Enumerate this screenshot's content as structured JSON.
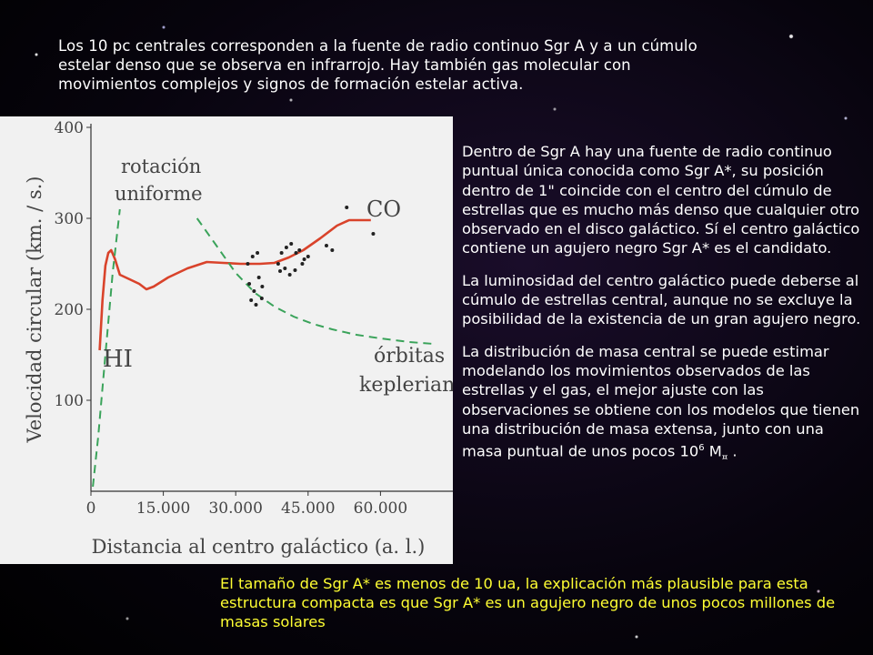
{
  "slide": {
    "intro_text": "Los 10 pc centrales corresponden a la fuente de radio continuo Sgr A y a un cúmulo estelar denso que se observa en infrarrojo. Hay también gas molecular con movimientos complejos y signos de formación estelar activa.",
    "side_paragraphs": [
      "Dentro de Sgr A hay una fuente de radio continuo puntual única conocida como Sgr A*, su posición dentro de 1\" coincide con el centro del cúmulo de estrellas que es mucho más denso que cualquier otro observado en el disco galáctico. Sí el centro galáctico contiene un agujero negro Sgr A* es el candidato.",
      "La luminosidad del centro galáctico puede deberse al cúmulo de estrellas central, aunque no se excluye la posibilidad de la existencia de un gran agujero negro."
    ],
    "mass_paragraph_prefix": "La distribución de masa central se puede estimar modelando los movimientos observados de las estrellas y el gas, el mejor ajuste con las observaciones se obtiene con los modelos que tienen una distribución de masa extensa, junto con una masa puntual de unos pocos 10",
    "mass_exponent": "6",
    "mass_unit": " M",
    "mass_symbol": "¤",
    "mass_end": " .",
    "conclusion_text": "El tamaño de Sgr A* es menos de 10 ua, la explicación más plausible para esta estructura compacta es que Sgr A* es un agujero negro de unos pocos millones de masas solares",
    "colors": {
      "conclusion": "#ffff33",
      "rotation_curve": "#d9432b",
      "model_curves": "#3aa35a"
    }
  },
  "chart_data": {
    "type": "line",
    "xlabel": "Distancia al centro galáctico (a. l.)",
    "ylabel": "Velocidad circular (km. / s.)",
    "xlim": [
      0,
      75000
    ],
    "ylim": [
      0,
      400
    ],
    "x_tick_labels": [
      "0",
      "15.000",
      "30.000",
      "45.000",
      "60.000"
    ],
    "x_tick_values": [
      0,
      15000,
      30000,
      45000,
      60000
    ],
    "y_tick_labels": [
      "100",
      "200",
      "300",
      "400"
    ],
    "y_tick_values": [
      100,
      200,
      300,
      400
    ],
    "grid": false,
    "series": [
      {
        "name": "HI",
        "style": "solid",
        "points": [
          [
            1800,
            155
          ],
          [
            2400,
            210
          ],
          [
            3000,
            248
          ],
          [
            3600,
            262
          ],
          [
            4200,
            265
          ],
          [
            5000,
            255
          ],
          [
            6000,
            238
          ],
          [
            8000,
            233
          ],
          [
            10000,
            228
          ],
          [
            11500,
            222
          ],
          [
            13000,
            225
          ],
          [
            16000,
            235
          ],
          [
            20000,
            245
          ],
          [
            24000,
            252
          ],
          [
            27500,
            251
          ],
          [
            31000,
            250
          ],
          [
            35000,
            250
          ],
          [
            38000,
            251
          ],
          [
            41000,
            257
          ],
          [
            44000,
            265
          ],
          [
            47500,
            278
          ],
          [
            51000,
            292
          ],
          [
            53500,
            298
          ],
          [
            56000,
            298
          ],
          [
            58000,
            298
          ]
        ]
      },
      {
        "name": "rotación uniforme",
        "style": "dashed",
        "points": [
          [
            400,
            5
          ],
          [
            1500,
            60
          ],
          [
            3000,
            150
          ],
          [
            4500,
            240
          ],
          [
            6000,
            310
          ]
        ]
      },
      {
        "name": "órbitas keplerianas",
        "style": "dashed",
        "points": [
          [
            22000,
            300
          ],
          [
            26000,
            270
          ],
          [
            30000,
            240
          ],
          [
            34000,
            218
          ],
          [
            38000,
            203
          ],
          [
            42000,
            192
          ],
          [
            46000,
            184
          ],
          [
            50000,
            178
          ],
          [
            55000,
            172
          ],
          [
            60000,
            168
          ],
          [
            66000,
            164
          ],
          [
            71000,
            162
          ]
        ]
      },
      {
        "name": "CO",
        "style": "points",
        "points": [
          [
            32500,
            250
          ],
          [
            33500,
            258
          ],
          [
            34500,
            262
          ],
          [
            32800,
            228
          ],
          [
            33800,
            220
          ],
          [
            34800,
            235
          ],
          [
            35500,
            225
          ],
          [
            33200,
            210
          ],
          [
            34200,
            205
          ],
          [
            35400,
            212
          ],
          [
            38800,
            250
          ],
          [
            39500,
            262
          ],
          [
            40500,
            268
          ],
          [
            41500,
            272
          ],
          [
            42500,
            262
          ],
          [
            43200,
            265
          ],
          [
            44200,
            255
          ],
          [
            45000,
            258
          ],
          [
            39200,
            242
          ],
          [
            40200,
            245
          ],
          [
            41200,
            238
          ],
          [
            42300,
            243
          ],
          [
            43800,
            250
          ],
          [
            48800,
            270
          ],
          [
            50000,
            265
          ],
          [
            53000,
            312
          ],
          [
            58500,
            283
          ]
        ]
      }
    ],
    "annotations": [
      "rotación uniforme",
      "CO",
      "HI",
      "órbitas keplerianas"
    ]
  }
}
